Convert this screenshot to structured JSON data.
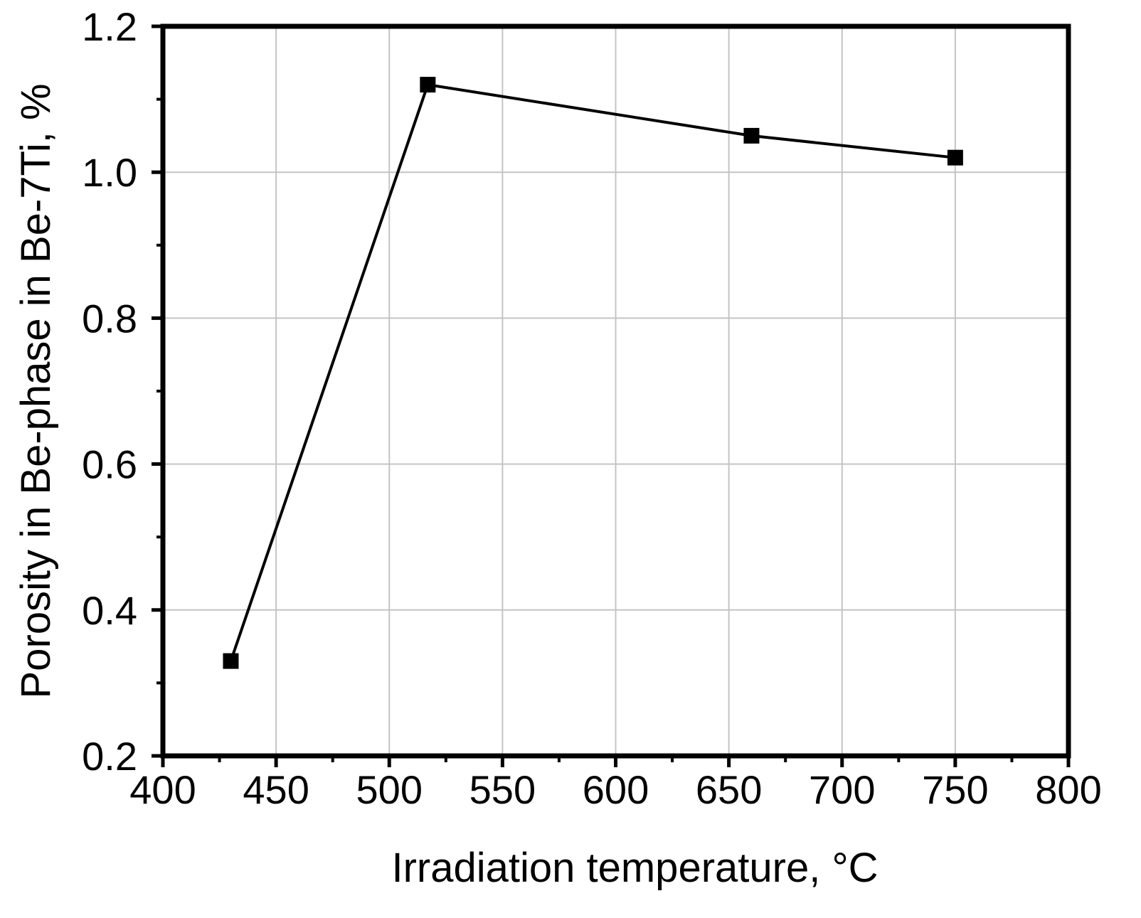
{
  "chart_data": {
    "type": "line",
    "title": "",
    "xlabel": "Irradiation temperature, °C",
    "ylabel": "Porosity in Be-phase in Be-7Ti, %",
    "xlim": [
      400,
      800
    ],
    "ylim": [
      0.2,
      1.2
    ],
    "x_ticks": [
      400,
      450,
      500,
      550,
      600,
      650,
      700,
      750,
      800
    ],
    "y_ticks": [
      0.2,
      0.4,
      0.6,
      0.8,
      1.0,
      1.2
    ],
    "x_tick_labels": [
      "400",
      "450",
      "500",
      "550",
      "600",
      "650",
      "700",
      "750",
      "800"
    ],
    "y_tick_labels": [
      "0.2",
      "0.4",
      "0.6",
      "0.8",
      "1.0",
      "1.2"
    ],
    "grid": true,
    "legend": "none",
    "series": [
      {
        "marker": "square",
        "color": "#000000",
        "x": [
          430,
          517,
          660,
          750
        ],
        "y": [
          0.33,
          1.12,
          1.05,
          1.02
        ]
      }
    ]
  }
}
